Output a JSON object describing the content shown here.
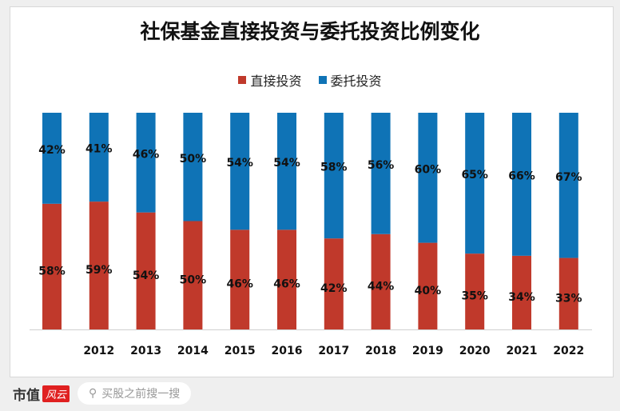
{
  "chart_data": {
    "type": "bar",
    "stacked": true,
    "percent": true,
    "title": "社保基金直接投资与委托投资比例变化",
    "categories": [
      "",
      "2012",
      "2013",
      "2014",
      "2015",
      "2016",
      "2017",
      "2018",
      "2019",
      "2020",
      "2021",
      "2022"
    ],
    "series": [
      {
        "name": "直接投资",
        "color": "#c0392b",
        "values": [
          58,
          59,
          54,
          50,
          46,
          46,
          42,
          44,
          40,
          35,
          34,
          33
        ]
      },
      {
        "name": "委托投资",
        "color": "#0f73b6",
        "values": [
          42,
          41,
          46,
          50,
          54,
          54,
          58,
          56,
          60,
          65,
          66,
          67
        ]
      }
    ],
    "ylim": [
      0,
      100
    ],
    "legend": "top",
    "grid": false
  },
  "footer": {
    "brand": "市值",
    "brand_logo": "风云",
    "search_placeholder": "买股之前搜一搜",
    "search_icon": "search-icon"
  }
}
